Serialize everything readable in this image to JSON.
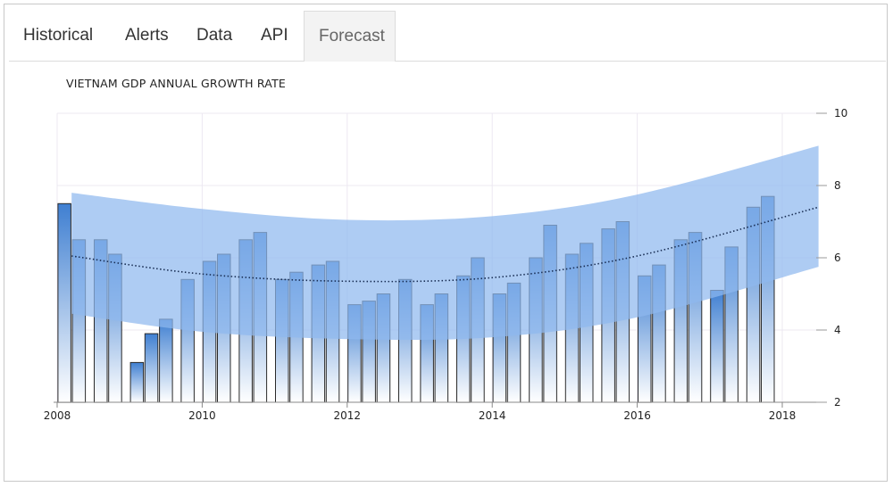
{
  "tabs": [
    {
      "label": "Historical",
      "active": false
    },
    {
      "label": "Alerts",
      "active": false
    },
    {
      "label": "Data",
      "active": false
    },
    {
      "label": "API",
      "active": false
    },
    {
      "label": "Forecast",
      "active": true
    }
  ],
  "chart_data": {
    "type": "bar",
    "title": "VIETNAM GDP ANNUAL GROWTH RATE",
    "xlabel": "",
    "ylabel": "",
    "ylim": [
      2,
      10
    ],
    "xlim": [
      2008,
      2018.5
    ],
    "y_ticks": [
      "2",
      "4",
      "6",
      "8",
      "10"
    ],
    "x_ticks": [
      "2008",
      "2010",
      "2012",
      "2014",
      "2016",
      "2018"
    ],
    "grid": true,
    "colors": {
      "bar_top": "#3f7fd1",
      "bar_bottom": "#ffffff",
      "band": "#8fb8ef",
      "trend": "#1a2f55"
    },
    "bars": [
      {
        "x": 2008.1,
        "value": 7.5
      },
      {
        "x": 2008.3,
        "value": 6.5
      },
      {
        "x": 2008.6,
        "value": 6.5
      },
      {
        "x": 2008.8,
        "value": 6.1
      },
      {
        "x": 2009.1,
        "value": 3.1
      },
      {
        "x": 2009.3,
        "value": 3.9
      },
      {
        "x": 2009.5,
        "value": 4.3
      },
      {
        "x": 2009.8,
        "value": 5.4
      },
      {
        "x": 2010.1,
        "value": 5.9
      },
      {
        "x": 2010.3,
        "value": 6.1
      },
      {
        "x": 2010.6,
        "value": 6.5
      },
      {
        "x": 2010.8,
        "value": 6.7
      },
      {
        "x": 2011.1,
        "value": 5.4
      },
      {
        "x": 2011.3,
        "value": 5.6
      },
      {
        "x": 2011.6,
        "value": 5.8
      },
      {
        "x": 2011.8,
        "value": 5.9
      },
      {
        "x": 2012.1,
        "value": 4.7
      },
      {
        "x": 2012.3,
        "value": 4.8
      },
      {
        "x": 2012.5,
        "value": 5.0
      },
      {
        "x": 2012.8,
        "value": 5.4
      },
      {
        "x": 2013.1,
        "value": 4.7
      },
      {
        "x": 2013.3,
        "value": 5.0
      },
      {
        "x": 2013.6,
        "value": 5.5
      },
      {
        "x": 2013.8,
        "value": 6.0
      },
      {
        "x": 2014.1,
        "value": 5.0
      },
      {
        "x": 2014.3,
        "value": 5.3
      },
      {
        "x": 2014.6,
        "value": 6.0
      },
      {
        "x": 2014.8,
        "value": 6.9
      },
      {
        "x": 2015.1,
        "value": 6.1
      },
      {
        "x": 2015.3,
        "value": 6.4
      },
      {
        "x": 2015.6,
        "value": 6.8
      },
      {
        "x": 2015.8,
        "value": 7.0
      },
      {
        "x": 2016.1,
        "value": 5.5
      },
      {
        "x": 2016.3,
        "value": 5.8
      },
      {
        "x": 2016.6,
        "value": 6.5
      },
      {
        "x": 2016.8,
        "value": 6.7
      },
      {
        "x": 2017.1,
        "value": 5.1
      },
      {
        "x": 2017.3,
        "value": 6.3
      },
      {
        "x": 2017.6,
        "value": 7.4
      },
      {
        "x": 2017.8,
        "value": 7.7
      }
    ],
    "forecast_band": {
      "upper": [
        [
          2008.2,
          7.8
        ],
        [
          2010.0,
          7.35
        ],
        [
          2012.0,
          7.05
        ],
        [
          2014.0,
          7.15
        ],
        [
          2016.0,
          7.75
        ],
        [
          2018.5,
          9.1
        ]
      ],
      "lower": [
        [
          2008.2,
          4.45
        ],
        [
          2010.0,
          3.95
        ],
        [
          2012.0,
          3.75
        ],
        [
          2014.0,
          3.8
        ],
        [
          2016.0,
          4.35
        ],
        [
          2018.5,
          5.75
        ]
      ]
    },
    "trend_line": [
      [
        2008.2,
        6.05
      ],
      [
        2010.0,
        5.55
      ],
      [
        2012.0,
        5.35
      ],
      [
        2014.0,
        5.45
      ],
      [
        2016.0,
        6.05
      ],
      [
        2018.5,
        7.4
      ]
    ]
  }
}
